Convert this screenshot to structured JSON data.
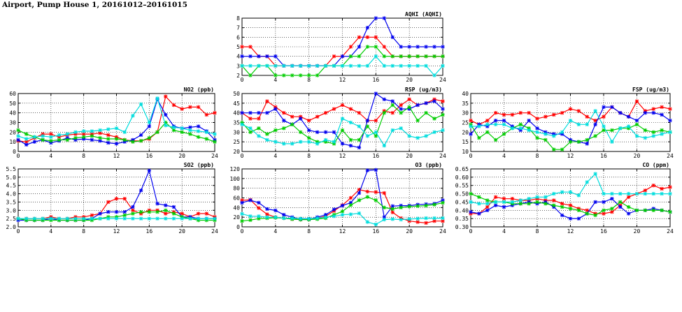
{
  "title": "Airport, Pump House 1, 20161012–20161015",
  "colors": {
    "red": "#ff0000",
    "blue": "#0000ee",
    "green": "#00cc00",
    "cyan": "#00dddd"
  },
  "chart_data": [
    {
      "id": "aqhi",
      "type": "line",
      "title": "AQHI (AQHI)",
      "xlim": [
        0,
        24
      ],
      "xticks": [
        0,
        4,
        8,
        12,
        16,
        20,
        24
      ],
      "ylim": [
        2,
        8
      ],
      "yticks": [
        2,
        3,
        4,
        5,
        6,
        7,
        8
      ],
      "grid": true,
      "series": [
        {
          "color": "red",
          "values": [
            5,
            5,
            4,
            4,
            3,
            3,
            3,
            3,
            3,
            3,
            3,
            4,
            4,
            5,
            6,
            6,
            6,
            5,
            4,
            4,
            4,
            4,
            4,
            4,
            4
          ]
        },
        {
          "color": "blue",
          "values": [
            4,
            4,
            4,
            4,
            4,
            3,
            3,
            3,
            3,
            3,
            3,
            3,
            4,
            4,
            5,
            7,
            8,
            8,
            6,
            5,
            5,
            5,
            5,
            5,
            5
          ]
        },
        {
          "color": "green",
          "values": [
            3,
            2,
            3,
            3,
            2,
            2,
            2,
            2,
            2,
            2,
            3,
            3,
            3,
            4,
            4,
            5,
            5,
            4,
            4,
            4,
            4,
            4,
            4,
            4,
            4
          ]
        },
        {
          "color": "cyan",
          "values": [
            3,
            3,
            3,
            3,
            3,
            3,
            3,
            3,
            3,
            3,
            3,
            3,
            3,
            3,
            3,
            3,
            4,
            3,
            3,
            3,
            3,
            3,
            3,
            2,
            3
          ]
        }
      ]
    },
    {
      "id": "no2",
      "type": "line",
      "title": "NO2 (ppb)",
      "xlim": [
        0,
        24
      ],
      "xticks": [
        0,
        4,
        8,
        12,
        16,
        20,
        24
      ],
      "ylim": [
        0,
        60
      ],
      "yticks": [
        0,
        10,
        20,
        30,
        40,
        50,
        60
      ],
      "grid": true,
      "series": [
        {
          "color": "red",
          "values": [
            11,
            10,
            14,
            18,
            18,
            15,
            17,
            18,
            18,
            18,
            19,
            17,
            15,
            12,
            11,
            11,
            13,
            20,
            57,
            48,
            44,
            46,
            46,
            38,
            40
          ]
        },
        {
          "color": "blue",
          "values": [
            12,
            7,
            10,
            12,
            9,
            11,
            14,
            12,
            13,
            12,
            11,
            9,
            8,
            10,
            12,
            17,
            26,
            54,
            38,
            26,
            24,
            25,
            26,
            21,
            12
          ]
        },
        {
          "color": "green",
          "values": [
            22,
            18,
            15,
            12,
            11,
            12,
            12,
            14,
            15,
            16,
            14,
            13,
            13,
            12,
            10,
            11,
            14,
            20,
            30,
            22,
            20,
            18,
            15,
            13,
            10
          ]
        },
        {
          "color": "cyan",
          "values": [
            16,
            13,
            15,
            16,
            15,
            17,
            18,
            20,
            21,
            21,
            22,
            23,
            24,
            20,
            37,
            49,
            30,
            55,
            27,
            25,
            24,
            22,
            21,
            20,
            18
          ]
        }
      ]
    },
    {
      "id": "rsp",
      "type": "line",
      "title": "RSP (ug/m3)",
      "xlim": [
        0,
        24
      ],
      "xticks": [
        0,
        4,
        8,
        12,
        16,
        20,
        24
      ],
      "ylim": [
        20,
        50
      ],
      "yticks": [
        20,
        25,
        30,
        35,
        40,
        45,
        50
      ],
      "grid": true,
      "series": [
        {
          "color": "red",
          "values": [
            40,
            37,
            37,
            46,
            43,
            40,
            38,
            38,
            36,
            38,
            40,
            42,
            44,
            42,
            40,
            36,
            36,
            41,
            40,
            44,
            47,
            44,
            45,
            47,
            46
          ]
        },
        {
          "color": "blue",
          "values": [
            40,
            40,
            40,
            40,
            42,
            36,
            34,
            37,
            31,
            30,
            30,
            30,
            24,
            23,
            22,
            36,
            50,
            47,
            46,
            42,
            42,
            44,
            45,
            46,
            42
          ]
        },
        {
          "color": "green",
          "values": [
            35,
            30,
            32,
            29,
            31,
            32,
            34,
            30,
            27,
            25,
            25,
            24,
            31,
            26,
            26,
            33,
            28,
            40,
            44,
            40,
            43,
            36,
            40,
            37,
            39
          ]
        },
        {
          "color": "cyan",
          "values": [
            34,
            32,
            28,
            26,
            25,
            24,
            24,
            25,
            25,
            24,
            26,
            25,
            37,
            35,
            33,
            28,
            30,
            23,
            31,
            32,
            28,
            27,
            28,
            30,
            31
          ]
        }
      ]
    },
    {
      "id": "fsp",
      "type": "line",
      "title": "FSP (ug/m3)",
      "xlim": [
        0,
        24
      ],
      "xticks": [
        0,
        4,
        8,
        12,
        16,
        20,
        24
      ],
      "ylim": [
        10,
        40
      ],
      "yticks": [
        10,
        15,
        20,
        25,
        30,
        35,
        40
      ],
      "grid": true,
      "series": [
        {
          "color": "red",
          "values": [
            26,
            24,
            26,
            30,
            29,
            29,
            30,
            30,
            27,
            28,
            29,
            30,
            32,
            31,
            28,
            26,
            28,
            33,
            30,
            28,
            36,
            31,
            32,
            33,
            32
          ]
        },
        {
          "color": "blue",
          "values": [
            19,
            24,
            23,
            26,
            26,
            23,
            21,
            26,
            22,
            20,
            19,
            19,
            16,
            15,
            14,
            24,
            33,
            33,
            30,
            28,
            26,
            30,
            30,
            29,
            26
          ]
        },
        {
          "color": "green",
          "values": [
            24,
            17,
            20,
            16,
            19,
            22,
            24,
            22,
            17,
            16,
            11,
            11,
            15,
            15,
            16,
            18,
            21,
            21,
            22,
            22,
            24,
            21,
            20,
            21,
            20
          ]
        },
        {
          "color": "cyan",
          "values": [
            23,
            23,
            24,
            24,
            24,
            22,
            22,
            21,
            20,
            19,
            18,
            20,
            26,
            24,
            24,
            31,
            23,
            15,
            22,
            23,
            18,
            17,
            18,
            19,
            20
          ]
        }
      ]
    },
    {
      "id": "so2",
      "type": "line",
      "title": "SO2 (ppb)",
      "xlim": [
        0,
        24
      ],
      "xticks": [
        0,
        4,
        8,
        12,
        16,
        20,
        24
      ],
      "ylim": [
        2.0,
        5.5
      ],
      "yticks": [
        2.0,
        2.5,
        3.0,
        3.5,
        4.0,
        4.5,
        5.0,
        5.5
      ],
      "ydecimals": 1,
      "grid": true,
      "series": [
        {
          "color": "red",
          "values": [
            2.5,
            2.5,
            2.5,
            2.5,
            2.6,
            2.5,
            2.5,
            2.6,
            2.6,
            2.7,
            2.8,
            3.5,
            3.7,
            3.7,
            3.0,
            2.8,
            3.0,
            3.0,
            2.8,
            2.9,
            2.8,
            2.6,
            2.8,
            2.8,
            2.6
          ]
        },
        {
          "color": "blue",
          "values": [
            2.4,
            2.4,
            2.4,
            2.4,
            2.5,
            2.4,
            2.4,
            2.4,
            2.4,
            2.5,
            2.8,
            2.9,
            2.9,
            2.9,
            3.2,
            4.2,
            5.4,
            3.4,
            3.3,
            3.2,
            2.6,
            2.6,
            2.5,
            2.5,
            2.5
          ]
        },
        {
          "color": "green",
          "values": [
            2.5,
            2.4,
            2.4,
            2.4,
            2.4,
            2.4,
            2.4,
            2.4,
            2.4,
            2.4,
            2.5,
            2.6,
            2.6,
            2.7,
            2.8,
            2.9,
            2.9,
            2.9,
            3.0,
            2.8,
            2.6,
            2.5,
            2.4,
            2.4,
            2.4
          ]
        },
        {
          "color": "cyan",
          "values": [
            2.5,
            2.5,
            2.5,
            2.5,
            2.5,
            2.5,
            2.5,
            2.5,
            2.5,
            2.5,
            2.5,
            2.5,
            2.5,
            2.5,
            2.5,
            2.5,
            2.5,
            2.5,
            2.5,
            2.5,
            2.5,
            2.5,
            2.5,
            2.5,
            2.5
          ]
        }
      ]
    },
    {
      "id": "o3",
      "type": "line",
      "title": "O3 (ppb)",
      "xlim": [
        0,
        24
      ],
      "xticks": [
        0,
        4,
        8,
        12,
        16,
        20,
        24
      ],
      "ylim": [
        0,
        120
      ],
      "yticks": [
        0,
        20,
        40,
        60,
        80,
        100,
        120
      ],
      "grid": true,
      "series": [
        {
          "color": "red",
          "values": [
            55,
            56,
            39,
            26,
            20,
            18,
            16,
            15,
            17,
            18,
            22,
            33,
            45,
            60,
            77,
            73,
            72,
            70,
            30,
            18,
            12,
            10,
            8,
            12,
            12
          ]
        },
        {
          "color": "blue",
          "values": [
            50,
            55,
            50,
            37,
            34,
            25,
            20,
            16,
            16,
            20,
            25,
            36,
            44,
            50,
            70,
            117,
            118,
            20,
            43,
            44,
            44,
            46,
            47,
            48,
            55
          ]
        },
        {
          "color": "green",
          "values": [
            12,
            14,
            17,
            18,
            19,
            18,
            16,
            15,
            15,
            16,
            18,
            25,
            32,
            45,
            55,
            62,
            55,
            40,
            37,
            40,
            42,
            43,
            44,
            46,
            50
          ]
        },
        {
          "color": "cyan",
          "values": [
            27,
            22,
            22,
            20,
            20,
            18,
            18,
            17,
            17,
            18,
            20,
            22,
            25,
            26,
            28,
            10,
            5,
            15,
            16,
            15,
            16,
            17,
            18,
            18,
            18
          ]
        }
      ]
    },
    {
      "id": "co",
      "type": "line",
      "title": "CO (ppm)",
      "xlim": [
        0,
        24
      ],
      "xticks": [
        0,
        4,
        8,
        12,
        16,
        20,
        24
      ],
      "ylim": [
        0.3,
        0.65
      ],
      "yticks": [
        0.3,
        0.35,
        0.4,
        0.45,
        0.5,
        0.55,
        0.6,
        0.65
      ],
      "ydecimals": 2,
      "grid": true,
      "series": [
        {
          "color": "red",
          "values": [
            0.38,
            0.38,
            0.42,
            0.48,
            0.47,
            0.47,
            0.46,
            0.46,
            0.47,
            0.46,
            0.46,
            0.44,
            0.43,
            0.41,
            0.4,
            0.38,
            0.38,
            0.39,
            0.43,
            0.48,
            0.5,
            0.52,
            0.55,
            0.53,
            0.54
          ]
        },
        {
          "color": "blue",
          "values": [
            0.39,
            0.38,
            0.4,
            0.43,
            0.42,
            0.43,
            0.44,
            0.45,
            0.44,
            0.45,
            0.42,
            0.37,
            0.35,
            0.35,
            0.38,
            0.45,
            0.45,
            0.47,
            0.42,
            0.38,
            0.4,
            0.4,
            0.41,
            0.4,
            0.39
          ]
        },
        {
          "color": "green",
          "values": [
            0.5,
            0.48,
            0.46,
            0.45,
            0.45,
            0.44,
            0.44,
            0.44,
            0.45,
            0.44,
            0.43,
            0.42,
            0.41,
            0.4,
            0.38,
            0.37,
            0.4,
            0.41,
            0.45,
            0.42,
            0.4,
            0.4,
            0.4,
            0.4,
            0.39
          ]
        },
        {
          "color": "cyan",
          "values": [
            0.45,
            0.44,
            0.44,
            0.45,
            0.45,
            0.45,
            0.46,
            0.47,
            0.48,
            0.48,
            0.5,
            0.51,
            0.51,
            0.49,
            0.57,
            0.62,
            0.5,
            0.5,
            0.5,
            0.5,
            0.5,
            0.5,
            0.5,
            0.5,
            0.5
          ]
        }
      ]
    }
  ]
}
